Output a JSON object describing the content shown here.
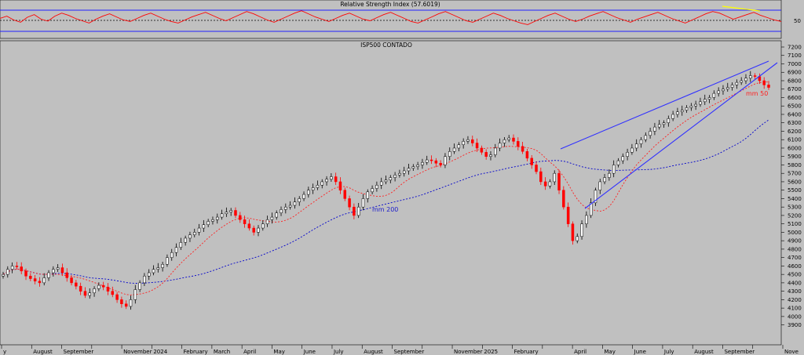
{
  "chart_data": [
    {
      "type": "line",
      "title": "Relative Strength Index (57.6019)",
      "ylim": [
        0,
        100
      ],
      "levels": [
        70,
        50,
        30
      ],
      "level_label": "50",
      "series": [
        {
          "color": "#ff0000",
          "values": [
            52,
            58,
            48,
            42,
            55,
            62,
            50,
            45,
            58,
            66,
            60,
            52,
            46,
            40,
            50,
            58,
            64,
            56,
            48,
            44,
            52,
            60,
            66,
            58,
            50,
            44,
            40,
            48,
            56,
            62,
            68,
            60,
            52,
            46,
            54,
            62,
            70,
            64,
            56,
            48,
            42,
            50,
            58,
            66,
            72,
            64,
            56,
            50,
            44,
            52,
            60,
            66,
            58,
            50,
            46,
            54,
            62,
            68,
            60,
            52,
            44,
            40,
            48,
            56,
            64,
            70,
            62,
            54,
            46,
            42,
            50,
            58,
            66,
            60,
            52,
            46,
            40,
            36,
            44,
            52,
            60,
            66,
            58,
            50,
            44,
            50,
            58,
            64,
            70,
            62,
            54,
            48,
            42,
            50,
            56,
            62,
            68,
            60,
            52,
            46,
            40,
            48,
            56,
            64,
            70,
            66,
            58,
            50,
            56,
            62,
            68,
            60,
            54,
            48,
            44
          ]
        }
      ],
      "annotation_color": "#ffff00"
    },
    {
      "type": "candlestick",
      "title": "ISP500 CONTADO",
      "ylim": [
        3850,
        7200
      ],
      "yticks": [
        3900,
        4000,
        4100,
        4200,
        4300,
        4400,
        4500,
        4600,
        4700,
        4800,
        4900,
        5000,
        5100,
        5200,
        5300,
        5400,
        5500,
        5600,
        5700,
        5800,
        5900,
        6000,
        6100,
        6200,
        6300,
        6400,
        6500,
        6600,
        6700,
        6800,
        6900,
        7000,
        7100,
        7200
      ],
      "xticks": [
        "y",
        "August",
        "September",
        "",
        "November",
        "2024",
        "February",
        "March",
        "April",
        "May",
        "June",
        "July",
        "August",
        "September",
        "",
        "November",
        "2025",
        "February",
        "",
        "April",
        "May",
        "June",
        "July",
        "August",
        "September",
        "",
        "Nove"
      ],
      "closes": [
        4500,
        4560,
        4600,
        4590,
        4540,
        4480,
        4450,
        4420,
        4400,
        4460,
        4520,
        4560,
        4580,
        4520,
        4460,
        4400,
        4360,
        4300,
        4250,
        4280,
        4330,
        4370,
        4350,
        4300,
        4260,
        4200,
        4150,
        4120,
        4200,
        4320,
        4400,
        4480,
        4520,
        4560,
        4580,
        4620,
        4700,
        4760,
        4820,
        4880,
        4930,
        4970,
        5000,
        5050,
        5090,
        5130,
        5150,
        5180,
        5220,
        5240,
        5260,
        5200,
        5150,
        5100,
        5050,
        5000,
        5050,
        5100,
        5150,
        5180,
        5230,
        5270,
        5300,
        5320,
        5360,
        5400,
        5450,
        5500,
        5530,
        5560,
        5600,
        5630,
        5660,
        5600,
        5500,
        5400,
        5300,
        5200,
        5300,
        5400,
        5480,
        5520,
        5560,
        5600,
        5620,
        5650,
        5680,
        5700,
        5730,
        5760,
        5780,
        5800,
        5830,
        5860,
        5850,
        5820,
        5800,
        5900,
        5960,
        6000,
        6040,
        6080,
        6100,
        6060,
        6000,
        5950,
        5900,
        5920,
        6000,
        6060,
        6100,
        6120,
        6080,
        6020,
        5960,
        5880,
        5800,
        5720,
        5600,
        5550,
        5600,
        5700,
        5500,
        5300,
        5100,
        4900,
        4950,
        5100,
        5200,
        5350,
        5500,
        5600,
        5650,
        5700,
        5800,
        5850,
        5900,
        5950,
        6000,
        6050,
        6100,
        6150,
        6200,
        6250,
        6280,
        6300,
        6350,
        6400,
        6430,
        6450,
        6480,
        6500,
        6520,
        6550,
        6580,
        6600,
        6650,
        6680,
        6700,
        6720,
        6750,
        6780,
        6800,
        6830,
        6860,
        6850,
        6800,
        6750,
        6720
      ]
    }
  ],
  "annotations": {
    "mm200": "mm 200",
    "mm50": "mm 50"
  }
}
